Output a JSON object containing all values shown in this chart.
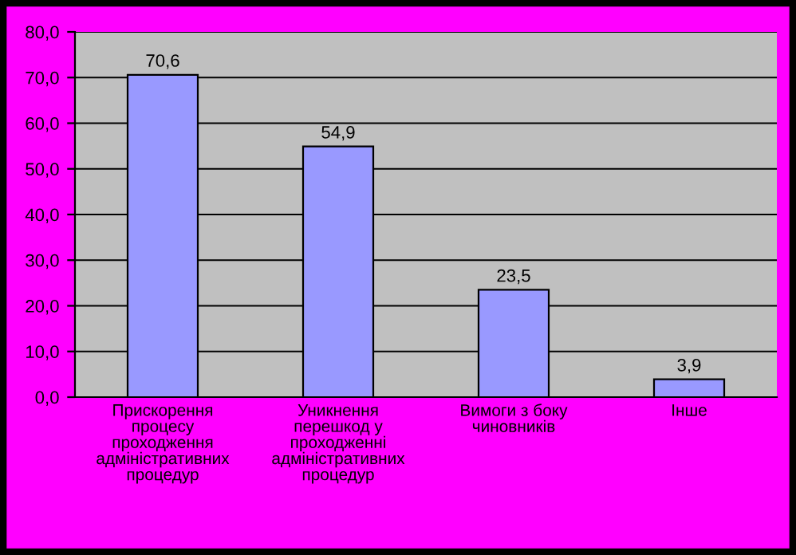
{
  "chart_data": {
    "type": "bar",
    "categories": [
      "Прискорення\nпроцесу\nпроходження\nадміністративних\nпроцедур",
      "Уникнення\nперешкод у\nпроходженні\nадміністративних\nпроцедур",
      "Вимоги з боку\nчиновників",
      "Інше"
    ],
    "values": [
      70.6,
      54.9,
      23.5,
      3.9
    ],
    "value_labels": [
      "70,6",
      "54,9",
      "23,5",
      "3,9"
    ],
    "color": "#9999ff",
    "ylim": [
      0,
      80
    ],
    "yticks": [
      {
        "value": 0,
        "label": "0,0"
      },
      {
        "value": 10,
        "label": "10,0"
      },
      {
        "value": 20,
        "label": "20,0"
      },
      {
        "value": 30,
        "label": "30,0"
      },
      {
        "value": 40,
        "label": "40,0"
      },
      {
        "value": 50,
        "label": "50,0"
      },
      {
        "value": 60,
        "label": "60,0"
      },
      {
        "value": 70,
        "label": "70,0"
      },
      {
        "value": 80,
        "label": "80,0"
      }
    ],
    "grid": "y"
  }
}
